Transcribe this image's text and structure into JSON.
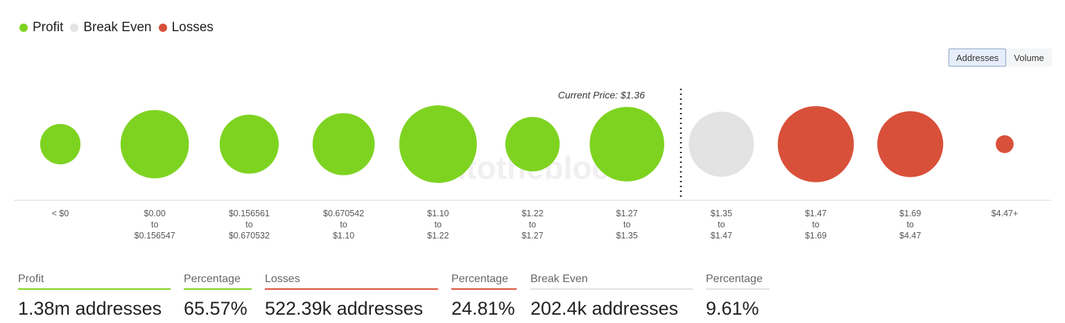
{
  "legend": [
    {
      "label": "Profit",
      "color": "#7ed321"
    },
    {
      "label": "Break Even",
      "color": "#e3e3e3"
    },
    {
      "label": "Losses",
      "color": "#d9503a"
    }
  ],
  "toggle": {
    "addresses_label": "Addresses",
    "volume_label": "Volume",
    "active": "Addresses"
  },
  "watermark": "intotheblock",
  "chart_data": {
    "type": "bubble",
    "current_price_label": "Current Price: $1.36",
    "colors": {
      "profit": "#7ed321",
      "break_even": "#e3e3e3",
      "losses": "#d9503a"
    },
    "buckets": [
      {
        "range_lines": [
          "< $0"
        ],
        "status": "profit",
        "relative_size": 0.52
      },
      {
        "range_lines": [
          "$0.00",
          "to",
          "$0.156547"
        ],
        "status": "profit",
        "relative_size": 0.88
      },
      {
        "range_lines": [
          "$0.156561",
          "to",
          "$0.670532"
        ],
        "status": "profit",
        "relative_size": 0.76
      },
      {
        "range_lines": [
          "$0.670542",
          "to",
          "$1.10"
        ],
        "status": "profit",
        "relative_size": 0.8
      },
      {
        "range_lines": [
          "$1.10",
          "to",
          "$1.22"
        ],
        "status": "profit",
        "relative_size": 1.0
      },
      {
        "range_lines": [
          "$1.22",
          "to",
          "$1.27"
        ],
        "status": "profit",
        "relative_size": 0.7
      },
      {
        "range_lines": [
          "$1.27",
          "to",
          "$1.35"
        ],
        "status": "profit",
        "relative_size": 0.96
      },
      {
        "range_lines": [
          "$1.35",
          "to",
          "$1.47"
        ],
        "status": "break_even",
        "relative_size": 0.84
      },
      {
        "range_lines": [
          "$1.47",
          "to",
          "$1.69"
        ],
        "status": "losses",
        "relative_size": 0.98
      },
      {
        "range_lines": [
          "$1.69",
          "to",
          "$4.47"
        ],
        "status": "losses",
        "relative_size": 0.85
      },
      {
        "range_lines": [
          "$4.47+"
        ],
        "status": "losses",
        "relative_size": 0.23
      }
    ]
  },
  "stats": [
    {
      "label": "Profit",
      "value": "1.38m addresses",
      "color": "#7ed321"
    },
    {
      "label": "Percentage",
      "value": "65.57%",
      "color": "#7ed321"
    },
    {
      "label": "Losses",
      "value": "522.39k addresses",
      "color": "#d9503a"
    },
    {
      "label": "Percentage",
      "value": "24.81%",
      "color": "#d9503a"
    },
    {
      "label": "Break Even",
      "value": "202.4k addresses",
      "color": "#e2e2e2"
    },
    {
      "label": "Percentage",
      "value": "9.61%",
      "color": "#e2e2e2"
    }
  ]
}
